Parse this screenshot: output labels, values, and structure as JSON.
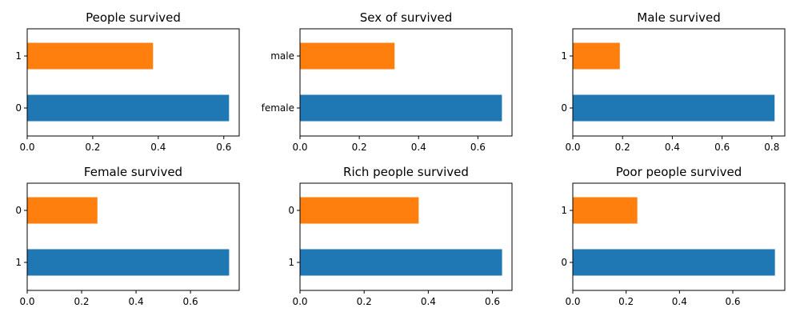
{
  "chart_data": [
    {
      "type": "bar",
      "orientation": "horizontal",
      "title": "People survived",
      "categories": [
        "0",
        "1"
      ],
      "values": [
        0.616,
        0.384
      ],
      "colors": [
        "#1f77b4",
        "#ff7f0e"
      ],
      "xlim": [
        0,
        0.647
      ],
      "xticks": [
        0.0,
        0.2,
        0.4,
        0.6
      ],
      "xtick_labels": [
        "0.0",
        "0.2",
        "0.4",
        "0.6"
      ],
      "xlabel": "",
      "ylabel": ""
    },
    {
      "type": "bar",
      "orientation": "horizontal",
      "title": "Sex of survived",
      "categories": [
        "female",
        "male"
      ],
      "values": [
        0.681,
        0.319
      ],
      "colors": [
        "#1f77b4",
        "#ff7f0e"
      ],
      "xlim": [
        0,
        0.715
      ],
      "xticks": [
        0.0,
        0.2,
        0.4,
        0.6
      ],
      "xtick_labels": [
        "0.0",
        "0.2",
        "0.4",
        "0.6"
      ],
      "xlabel": "",
      "ylabel": ""
    },
    {
      "type": "bar",
      "orientation": "horizontal",
      "title": "Male survived",
      "categories": [
        "0",
        "1"
      ],
      "values": [
        0.811,
        0.189
      ],
      "colors": [
        "#1f77b4",
        "#ff7f0e"
      ],
      "xlim": [
        0,
        0.852
      ],
      "xticks": [
        0.0,
        0.2,
        0.4,
        0.6,
        0.8
      ],
      "xtick_labels": [
        "0.0",
        "0.2",
        "0.4",
        "0.6",
        "0.8"
      ],
      "xlabel": "",
      "ylabel": ""
    },
    {
      "type": "bar",
      "orientation": "horizontal",
      "title": "Female survived",
      "categories": [
        "1",
        "0"
      ],
      "values": [
        0.742,
        0.258
      ],
      "colors": [
        "#1f77b4",
        "#ff7f0e"
      ],
      "xlim": [
        0,
        0.779
      ],
      "xticks": [
        0.0,
        0.2,
        0.4,
        0.6
      ],
      "xtick_labels": [
        "0.0",
        "0.2",
        "0.4",
        "0.6"
      ],
      "xlabel": "",
      "ylabel": ""
    },
    {
      "type": "bar",
      "orientation": "horizontal",
      "title": "Rich people survived",
      "categories": [
        "1",
        "0"
      ],
      "values": [
        0.63,
        0.37
      ],
      "colors": [
        "#1f77b4",
        "#ff7f0e"
      ],
      "xlim": [
        0,
        0.661
      ],
      "xticks": [
        0.0,
        0.2,
        0.4,
        0.6
      ],
      "xtick_labels": [
        "0.0",
        "0.2",
        "0.4",
        "0.6"
      ],
      "xlabel": "",
      "ylabel": ""
    },
    {
      "type": "bar",
      "orientation": "horizontal",
      "title": "Poor people survived",
      "categories": [
        "0",
        "1"
      ],
      "values": [
        0.758,
        0.242
      ],
      "colors": [
        "#1f77b4",
        "#ff7f0e"
      ],
      "xlim": [
        0,
        0.795
      ],
      "xticks": [
        0.0,
        0.2,
        0.4,
        0.6
      ],
      "xtick_labels": [
        "0.0",
        "0.2",
        "0.4",
        "0.6"
      ],
      "xlabel": "",
      "ylabel": ""
    }
  ]
}
